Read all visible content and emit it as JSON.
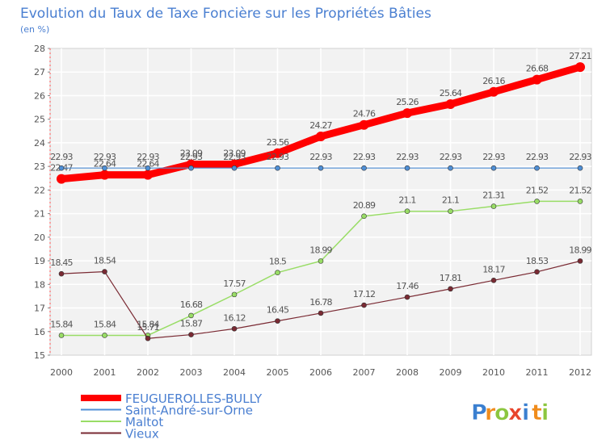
{
  "chart_data": {
    "type": "line",
    "title": "Evolution du Taux de Taxe Foncière sur les Propriétés Bâties",
    "subtitle": "(en %)",
    "xlabel": "",
    "ylabel": "",
    "ylim": [
      15,
      28
    ],
    "yticks": [
      "15",
      "16",
      "17",
      "18",
      "19",
      "20",
      "21",
      "22",
      "23",
      "24",
      "25",
      "26",
      "27",
      "28"
    ],
    "categories": [
      "2000",
      "2001",
      "2002",
      "2003",
      "2004",
      "2005",
      "2006",
      "2007",
      "2008",
      "2009",
      "2010",
      "2011",
      "2012"
    ],
    "grid": true,
    "legend_position": "bottom-left",
    "series": [
      {
        "name": "FEUGUEROLLES-BULLY",
        "color": "#ff0000",
        "values": [
          22.47,
          22.64,
          22.64,
          23.09,
          23.09,
          23.56,
          24.27,
          24.76,
          25.26,
          25.64,
          26.16,
          26.68,
          27.21
        ],
        "labels": [
          "22.47",
          "22.64",
          "22.64",
          "23.09",
          "23.09",
          "23.56",
          "24.27",
          "24.76",
          "25.26",
          "25.64",
          "26.16",
          "26.68",
          "27.21"
        ]
      },
      {
        "name": "Saint-André-sur-Orne",
        "color": "#4f8fd6",
        "values": [
          22.93,
          22.93,
          22.93,
          22.93,
          22.93,
          22.93,
          22.93,
          22.93,
          22.93,
          22.93,
          22.93,
          22.93,
          22.93
        ],
        "labels": [
          "22.93",
          "22.93",
          "22.93",
          "22.93",
          "22.93",
          "22.93",
          "22.93",
          "22.93",
          "22.93",
          "22.93",
          "22.93",
          "22.93",
          "22.93"
        ]
      },
      {
        "name": "Maltot",
        "color": "#99dd66",
        "values": [
          15.84,
          15.84,
          15.84,
          16.68,
          17.57,
          18.5,
          18.99,
          20.89,
          21.1,
          21.1,
          21.31,
          21.52,
          21.52
        ],
        "labels": [
          "15.84",
          "15.84",
          "15.84",
          "16.68",
          "17.57",
          "18.5",
          "18.99",
          "20.89",
          "21.1",
          "21.1",
          "21.31",
          "21.52",
          "21.52"
        ]
      },
      {
        "name": "Vieux",
        "color": "#7a2a33",
        "values": [
          18.45,
          18.54,
          15.71,
          15.87,
          16.12,
          16.45,
          16.78,
          17.12,
          17.46,
          17.81,
          18.17,
          18.53,
          18.99
        ],
        "labels": [
          "18.45",
          "18.54",
          "15.71",
          "15.87",
          "16.12",
          "16.45",
          "16.78",
          "17.12",
          "17.46",
          "17.81",
          "18.17",
          "18.53",
          "18.99"
        ]
      }
    ]
  },
  "watermark": {
    "letters": [
      "P",
      "r",
      "o",
      "x",
      "i",
      "t",
      "i"
    ],
    "colors": [
      "#3a7fd0",
      "#f08c1c",
      "#8cc63f",
      "#e8452c",
      "#3a7fd0",
      "#f08c1c",
      "#8cc63f"
    ]
  }
}
